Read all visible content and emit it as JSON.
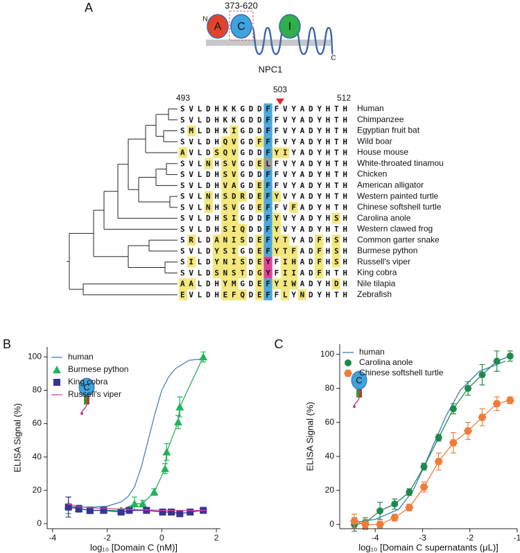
{
  "panel_labels": [
    "A",
    "B",
    "C"
  ],
  "diagram": {
    "domains": [
      "A",
      "C",
      "I"
    ],
    "range": "373-620",
    "n_label": "N",
    "c_label": "C",
    "name": "NPC1"
  },
  "alignment": {
    "positions": [
      "493",
      "503",
      "512"
    ],
    "rows": [
      {
        "sequence": "SVLDHKKGDDFFVYADYHTH",
        "species": "Human",
        "color": "#4a86c8"
      },
      {
        "sequence": "SVLDHKKGDDFFVYADYHTH",
        "species": "Chimpanzee"
      },
      {
        "sequence": "SMLDHKIGDDFFVYADYHTH",
        "species": "Egyptian fruit bat"
      },
      {
        "sequence": "SVLDHQVGDFFFVYADYHTH",
        "species": "Wild boar"
      },
      {
        "sequence": "AVLDSQVGDDFYIYADYHTH",
        "species": "House mouse"
      },
      {
        "sequence": "SVLNHSVGDELFVYADYHTH",
        "species": "White-throated tinamou"
      },
      {
        "sequence": "SVLDHSVGDDFFVYADYHTH",
        "species": "Chicken"
      },
      {
        "sequence": "SVLDHVAGDEFFVYADYHTH",
        "species": "American alligator"
      },
      {
        "sequence": "SVLNHSDRDEFYVYADYHTH",
        "species": "Western painted turtle"
      },
      {
        "sequence": "SVLNHSVGDEFFVFADYHTH",
        "species": "Chinese softshell turtle",
        "color": "#ef7a3a"
      },
      {
        "sequence": "SVLDHSIGDDFYVYADYHSH",
        "species": "Carolina anole",
        "color": "#1f9a4d"
      },
      {
        "sequence": "SVLDHSIQDDFYVYADYHTH",
        "species": "Western clawed frog"
      },
      {
        "sequence": "SRLDANISDEFYTYADFHSH",
        "species": "Common garter snake"
      },
      {
        "sequence": "SVLDYSIGDEFYTFADFHSH",
        "species": "Burmese python",
        "color": "#22b35a"
      },
      {
        "sequence": "SILDYNISDEYFIHADFHSH",
        "species": "Russell's viper",
        "color": "#d6489a"
      },
      {
        "sequence": "SVLDSNSTDGYFIIADFHTH",
        "species": "King cobra",
        "color": "#3a3195"
      },
      {
        "sequence": "AALDHYMGDEFYIWADYHDH",
        "species": "Nile tilapia"
      },
      {
        "sequence": "EVLDHEFQDEFFLYNDYHTH",
        "species": "Zebrafish"
      }
    ]
  },
  "chart_data": [
    {
      "type": "line",
      "x_label": "log₁₀ [Domain C (nM)]",
      "y_label": "ELISA Signal (%)",
      "xlim": [
        -4.2,
        2.15
      ],
      "ylim": [
        -3,
        106
      ],
      "xticks": [
        -4,
        -2,
        0,
        2
      ],
      "yticks": [
        0,
        20,
        40,
        60,
        80,
        100
      ],
      "legend": "upper left",
      "legend_text_colored": true,
      "series": [
        {
          "name": "human",
          "color": "#4a7fc1",
          "marker": "none",
          "line": true,
          "x": [
            -3.5,
            -2.5,
            -2,
            -1.5,
            -1.25,
            -1,
            -0.75,
            -0.5,
            -0.25,
            0,
            0.25,
            0.5,
            1,
            1.6
          ],
          "values": [
            10,
            10,
            10.5,
            13,
            16,
            22,
            34,
            50,
            66,
            80,
            88,
            93,
            98,
            99
          ]
        },
        {
          "name": "Burmese python",
          "color": "#22b35a",
          "marker": "triangle",
          "line": true,
          "x": [
            -3.42,
            -3.04,
            -2.63,
            -2.13,
            -1.49,
            -1,
            -0.7,
            -0.28,
            0.12,
            0.18,
            0.6,
            0.66,
            1.52
          ],
          "values": [
            11,
            9,
            8,
            8,
            8,
            12,
            12,
            19,
            33,
            43,
            61,
            70,
            100
          ],
          "errors": [
            5,
            2,
            2,
            1,
            1,
            4,
            2,
            2,
            3,
            5,
            4,
            6,
            3
          ]
        },
        {
          "name": "King cobra",
          "color": "#3a3195",
          "marker": "square",
          "line": true,
          "x": [
            -3.42,
            -3.04,
            -2.63,
            -2.13,
            -1.49,
            -1.19,
            -0.56,
            0.03,
            0.35,
            0.66,
            1.04,
            1.52
          ],
          "values": [
            10,
            9,
            8,
            8,
            7,
            8,
            8,
            7,
            7,
            6,
            7,
            8
          ],
          "errors": [
            6,
            2,
            1,
            1,
            1,
            1,
            1,
            1,
            1,
            1,
            1,
            1
          ]
        },
        {
          "name": "Russell's viper",
          "color": "#d6489a",
          "marker": "none",
          "line": true,
          "x": [
            -3.5,
            -3,
            -2,
            -1,
            0,
            1,
            1.6
          ],
          "values": [
            12,
            10,
            9,
            8.5,
            8,
            8,
            8
          ]
        }
      ]
    },
    {
      "type": "line",
      "x_label": "log₁₀ [Domain C supernatants (μL)]",
      "y_label": "ELISA Signal (%)",
      "xlim": [
        -4.75,
        -1
      ],
      "ylim": [
        -2.5,
        106
      ],
      "xticks": [
        -4,
        -3,
        -2,
        -1
      ],
      "yticks": [
        0,
        20,
        40,
        60,
        80,
        100
      ],
      "legend": "upper left",
      "legend_text_colored": false,
      "series": [
        {
          "name": "human",
          "color": "#3a7bbf",
          "marker": "none",
          "line": true,
          "x": [
            -4.5,
            -4,
            -3.5,
            -3.2,
            -3,
            -2.8,
            -2.5,
            -2.2,
            -1.8,
            -1.25
          ],
          "values": [
            1,
            3,
            9,
            20,
            32,
            45,
            64,
            79,
            90,
            96
          ]
        },
        {
          "name": "Carolina anole",
          "color": "#1e8a4a",
          "marker": "circle",
          "line": true,
          "x": [
            -4.44,
            -4.21,
            -3.9,
            -3.59,
            -3.28,
            -2.97,
            -2.66,
            -2.35,
            -2.04,
            -1.74,
            -1.43,
            -1.15
          ],
          "values": [
            0,
            1,
            8,
            12,
            19,
            34,
            51,
            68,
            80,
            88,
            96,
            99
          ],
          "errors": [
            4,
            3,
            5,
            3,
            2,
            2,
            2,
            3,
            4,
            6,
            6,
            3
          ]
        },
        {
          "name": "Chinese softshell turtle",
          "color": "#f07c3a",
          "marker": "hexagon",
          "line": true,
          "x": [
            -4.44,
            -4.21,
            -3.9,
            -3.59,
            -3.28,
            -2.97,
            -2.66,
            -2.35,
            -2.04,
            -1.74,
            -1.43,
            -1.15
          ],
          "values": [
            2,
            0,
            0,
            4,
            10,
            22,
            37,
            48,
            55,
            63,
            71,
            73
          ],
          "errors": [
            4,
            3,
            2,
            2,
            2,
            3,
            5,
            6,
            5,
            5,
            4,
            2
          ]
        }
      ]
    }
  ]
}
